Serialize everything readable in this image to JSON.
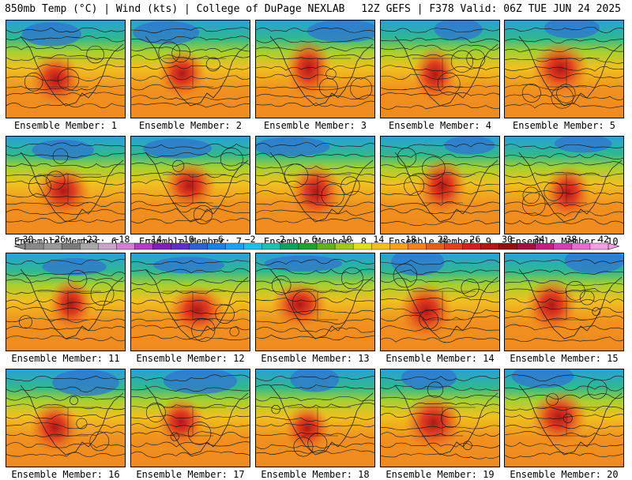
{
  "header": {
    "left_title": "850mb Temp (°C) | Wind (kts) | College of DuPage NEXLAB",
    "right_title": "12Z GEFS | F378 Valid: 06Z TUE JUN 24 2025"
  },
  "colorbar": {
    "labels": [
      "−30",
      "−26",
      "−22",
      "−18",
      "−14",
      "−10",
      "−6",
      "−2",
      "2",
      "6",
      "10",
      "14",
      "18",
      "22",
      "26",
      "30",
      "34",
      "38",
      "42"
    ],
    "colors": [
      "#888888",
      "#9a9a9a",
      "#7a7a7a",
      "#a8a8a8",
      "#c9a3c9",
      "#d080d0",
      "#b040c0",
      "#8020b0",
      "#6030c0",
      "#3060d0",
      "#2080e0",
      "#20a0f0",
      "#20c0e0",
      "#20c0b0",
      "#10a060",
      "#20a030",
      "#60b020",
      "#a0c820",
      "#e0e020",
      "#f0c020",
      "#f0a020",
      "#f08020",
      "#e06020",
      "#e04020",
      "#d02020",
      "#b01818",
      "#901010",
      "#a01040",
      "#c02080",
      "#d040b0",
      "#e070d0",
      "#f0a0e0"
    ]
  },
  "members": [
    {
      "label": "Ensemble Member: 1"
    },
    {
      "label": "Ensemble Member: 2"
    },
    {
      "label": "Ensemble Member: 3"
    },
    {
      "label": "Ensemble Member: 4"
    },
    {
      "label": "Ensemble Member: 5"
    },
    {
      "label": "Ensemble Member: 6"
    },
    {
      "label": "Ensemble Member: 7"
    },
    {
      "label": "Ensemble Member: 8"
    },
    {
      "label": "Ensemble Member: 9"
    },
    {
      "label": "Ensemble Member: 10"
    },
    {
      "label": "Ensemble Member: 11"
    },
    {
      "label": "Ensemble Member: 12"
    },
    {
      "label": "Ensemble Member: 13"
    },
    {
      "label": "Ensemble Member: 14"
    },
    {
      "label": "Ensemble Member: 15"
    },
    {
      "label": "Ensemble Member: 16"
    },
    {
      "label": "Ensemble Member: 17"
    },
    {
      "label": "Ensemble Member: 18"
    },
    {
      "label": "Ensemble Member: 19"
    },
    {
      "label": "Ensemble Member: 20"
    }
  ]
}
